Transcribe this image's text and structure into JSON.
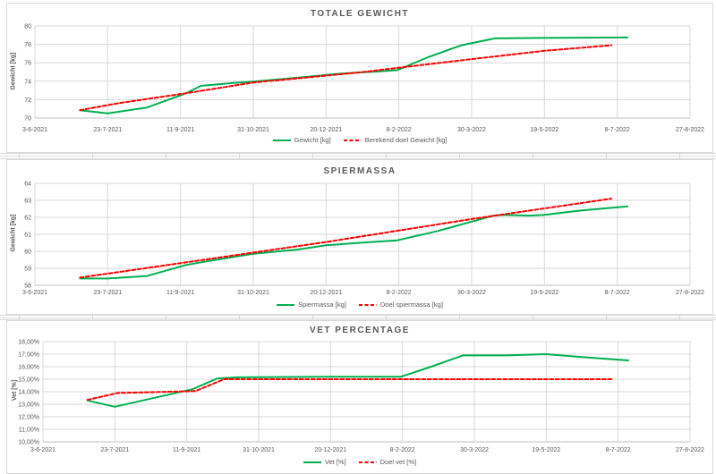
{
  "chart_data": [
    {
      "type": "line",
      "title": "TOTALE GEWICHT",
      "ylabel": "Gewicht [kg]",
      "ylim": [
        70,
        80
      ],
      "ytick_values": [
        70,
        72,
        74,
        76,
        78,
        80
      ],
      "ytick_labels": [
        "70",
        "72",
        "74",
        "76",
        "78",
        "80"
      ],
      "xlim_days": [
        0,
        450
      ],
      "xtick_days": [
        0,
        50,
        100,
        150,
        200,
        250,
        300,
        350,
        400,
        450
      ],
      "xtick_labels": [
        "3-6-2021",
        "23-7-2021",
        "11-9-2021",
        "31-10-2021",
        "20-12-2021",
        "8-2-2022",
        "30-3-2022",
        "19-5-2022",
        "8-7-2022",
        "27-8-2022"
      ],
      "grid": true,
      "legend_position": "bottom",
      "series": [
        {
          "name": "Gewicht [kg]",
          "color": "#00B050",
          "dash": null,
          "points": [
            [
              31,
              70.85
            ],
            [
              50,
              70.5
            ],
            [
              77,
              71.15
            ],
            [
              104,
              72.7
            ],
            [
              114,
              73.5
            ],
            [
              135,
              73.8
            ],
            [
              150,
              73.95
            ],
            [
              164,
              74.15
            ],
            [
              188,
              74.5
            ],
            [
              208,
              74.8
            ],
            [
              223,
              74.95
            ],
            [
              235,
              75.05
            ],
            [
              249,
              75.2
            ],
            [
              270,
              76.6
            ],
            [
              293,
              77.9
            ],
            [
              316,
              78.65
            ],
            [
              350,
              78.7
            ],
            [
              407,
              78.75
            ]
          ]
        },
        {
          "name": "Berekend doel Gewicht [kg]",
          "color": "#FF0000",
          "dash": "4 2.5",
          "points": [
            [
              31,
              70.85
            ],
            [
              57,
              71.6
            ],
            [
              104,
              72.7
            ],
            [
              150,
              73.85
            ],
            [
              200,
              74.6
            ],
            [
              223,
              74.95
            ],
            [
              249,
              75.45
            ],
            [
              300,
              76.4
            ],
            [
              350,
              77.3
            ],
            [
              396,
              77.9
            ]
          ]
        }
      ]
    },
    {
      "type": "line",
      "title": "SPIERMASSA",
      "ylabel": "Gewicht [kg]",
      "ylim": [
        58,
        64
      ],
      "ytick_values": [
        58,
        59,
        60,
        61,
        62,
        63,
        64
      ],
      "ytick_labels": [
        "58",
        "59",
        "60",
        "61",
        "62",
        "63",
        "64"
      ],
      "xlim_days": [
        0,
        450
      ],
      "xtick_days": [
        0,
        50,
        100,
        150,
        200,
        250,
        300,
        350,
        400,
        450
      ],
      "xtick_labels": [
        "3-6-2021",
        "23-7-2021",
        "11-9-2021",
        "31-10-2021",
        "20-12-2021",
        "8-2-2022",
        "30-3-2022",
        "19-5-2022",
        "8-7-2022",
        "27-8-2022"
      ],
      "grid": true,
      "legend_position": "bottom",
      "series": [
        {
          "name": "Spiermassa [kg]",
          "color": "#00B050",
          "dash": null,
          "points": [
            [
              31,
              58.4
            ],
            [
              50,
              58.4
            ],
            [
              77,
              58.55
            ],
            [
              104,
              59.2
            ],
            [
              121,
              59.45
            ],
            [
              150,
              59.85
            ],
            [
              180,
              60.1
            ],
            [
              200,
              60.35
            ],
            [
              223,
              60.5
            ],
            [
              249,
              60.65
            ],
            [
              277,
              61.2
            ],
            [
              300,
              61.75
            ],
            [
              315,
              62.1
            ],
            [
              322,
              62.15
            ],
            [
              340,
              62.1
            ],
            [
              350,
              62.15
            ],
            [
              375,
              62.4
            ],
            [
              407,
              62.65
            ]
          ]
        },
        {
          "name": "Doel spiermassa [kg]",
          "color": "#FF0000",
          "dash": "4 2.5",
          "points": [
            [
              31,
              58.45
            ],
            [
              104,
              59.35
            ],
            [
              200,
              60.55
            ],
            [
              300,
              61.9
            ],
            [
              396,
              63.1
            ]
          ]
        }
      ]
    },
    {
      "type": "line",
      "title": "VET PERCENTAGE",
      "ylabel": "Vet [%]",
      "ylim": [
        10,
        18
      ],
      "ytick_values": [
        10,
        11,
        12,
        13,
        14,
        15,
        16,
        17,
        18
      ],
      "ytick_labels": [
        "10,00%",
        "11,00%",
        "12,00%",
        "13,00%",
        "14,00%",
        "15,00%",
        "16,00%",
        "17,00%",
        "18,00%"
      ],
      "xlim_days": [
        0,
        450
      ],
      "xtick_days": [
        0,
        50,
        100,
        150,
        200,
        250,
        300,
        350,
        400,
        450
      ],
      "xtick_labels": [
        "3-6-2021",
        "23-7-2021",
        "11-9-2021",
        "31-10-2021",
        "20-12-2021",
        "8-2-2022",
        "30-3-2022",
        "19-5-2022",
        "8-7-2022",
        "27-8-2022"
      ],
      "grid": true,
      "legend_position": "bottom",
      "series": [
        {
          "name": "Vet [%]",
          "color": "#00B050",
          "dash": null,
          "points": [
            [
              31,
              13.3
            ],
            [
              50,
              12.8
            ],
            [
              104,
              14.2
            ],
            [
              121,
              15.05
            ],
            [
              135,
              15.15
            ],
            [
              200,
              15.2
            ],
            [
              249,
              15.2
            ],
            [
              270,
              16.0
            ],
            [
              292,
              16.9
            ],
            [
              322,
              16.9
            ],
            [
              350,
              17.0
            ],
            [
              377,
              16.75
            ],
            [
              407,
              16.5
            ]
          ]
        },
        {
          "name": "Doel vet [%]",
          "color": "#FF0000",
          "dash": "4 2.5",
          "points": [
            [
              31,
              13.35
            ],
            [
              52,
              13.9
            ],
            [
              106,
              14.05
            ],
            [
              126,
              15.0
            ],
            [
              396,
              15.0
            ]
          ]
        }
      ]
    }
  ],
  "theme": {
    "grid_color": "#D9D9D9",
    "axis_color": "#BFBFBF",
    "text_color": "#595959"
  }
}
